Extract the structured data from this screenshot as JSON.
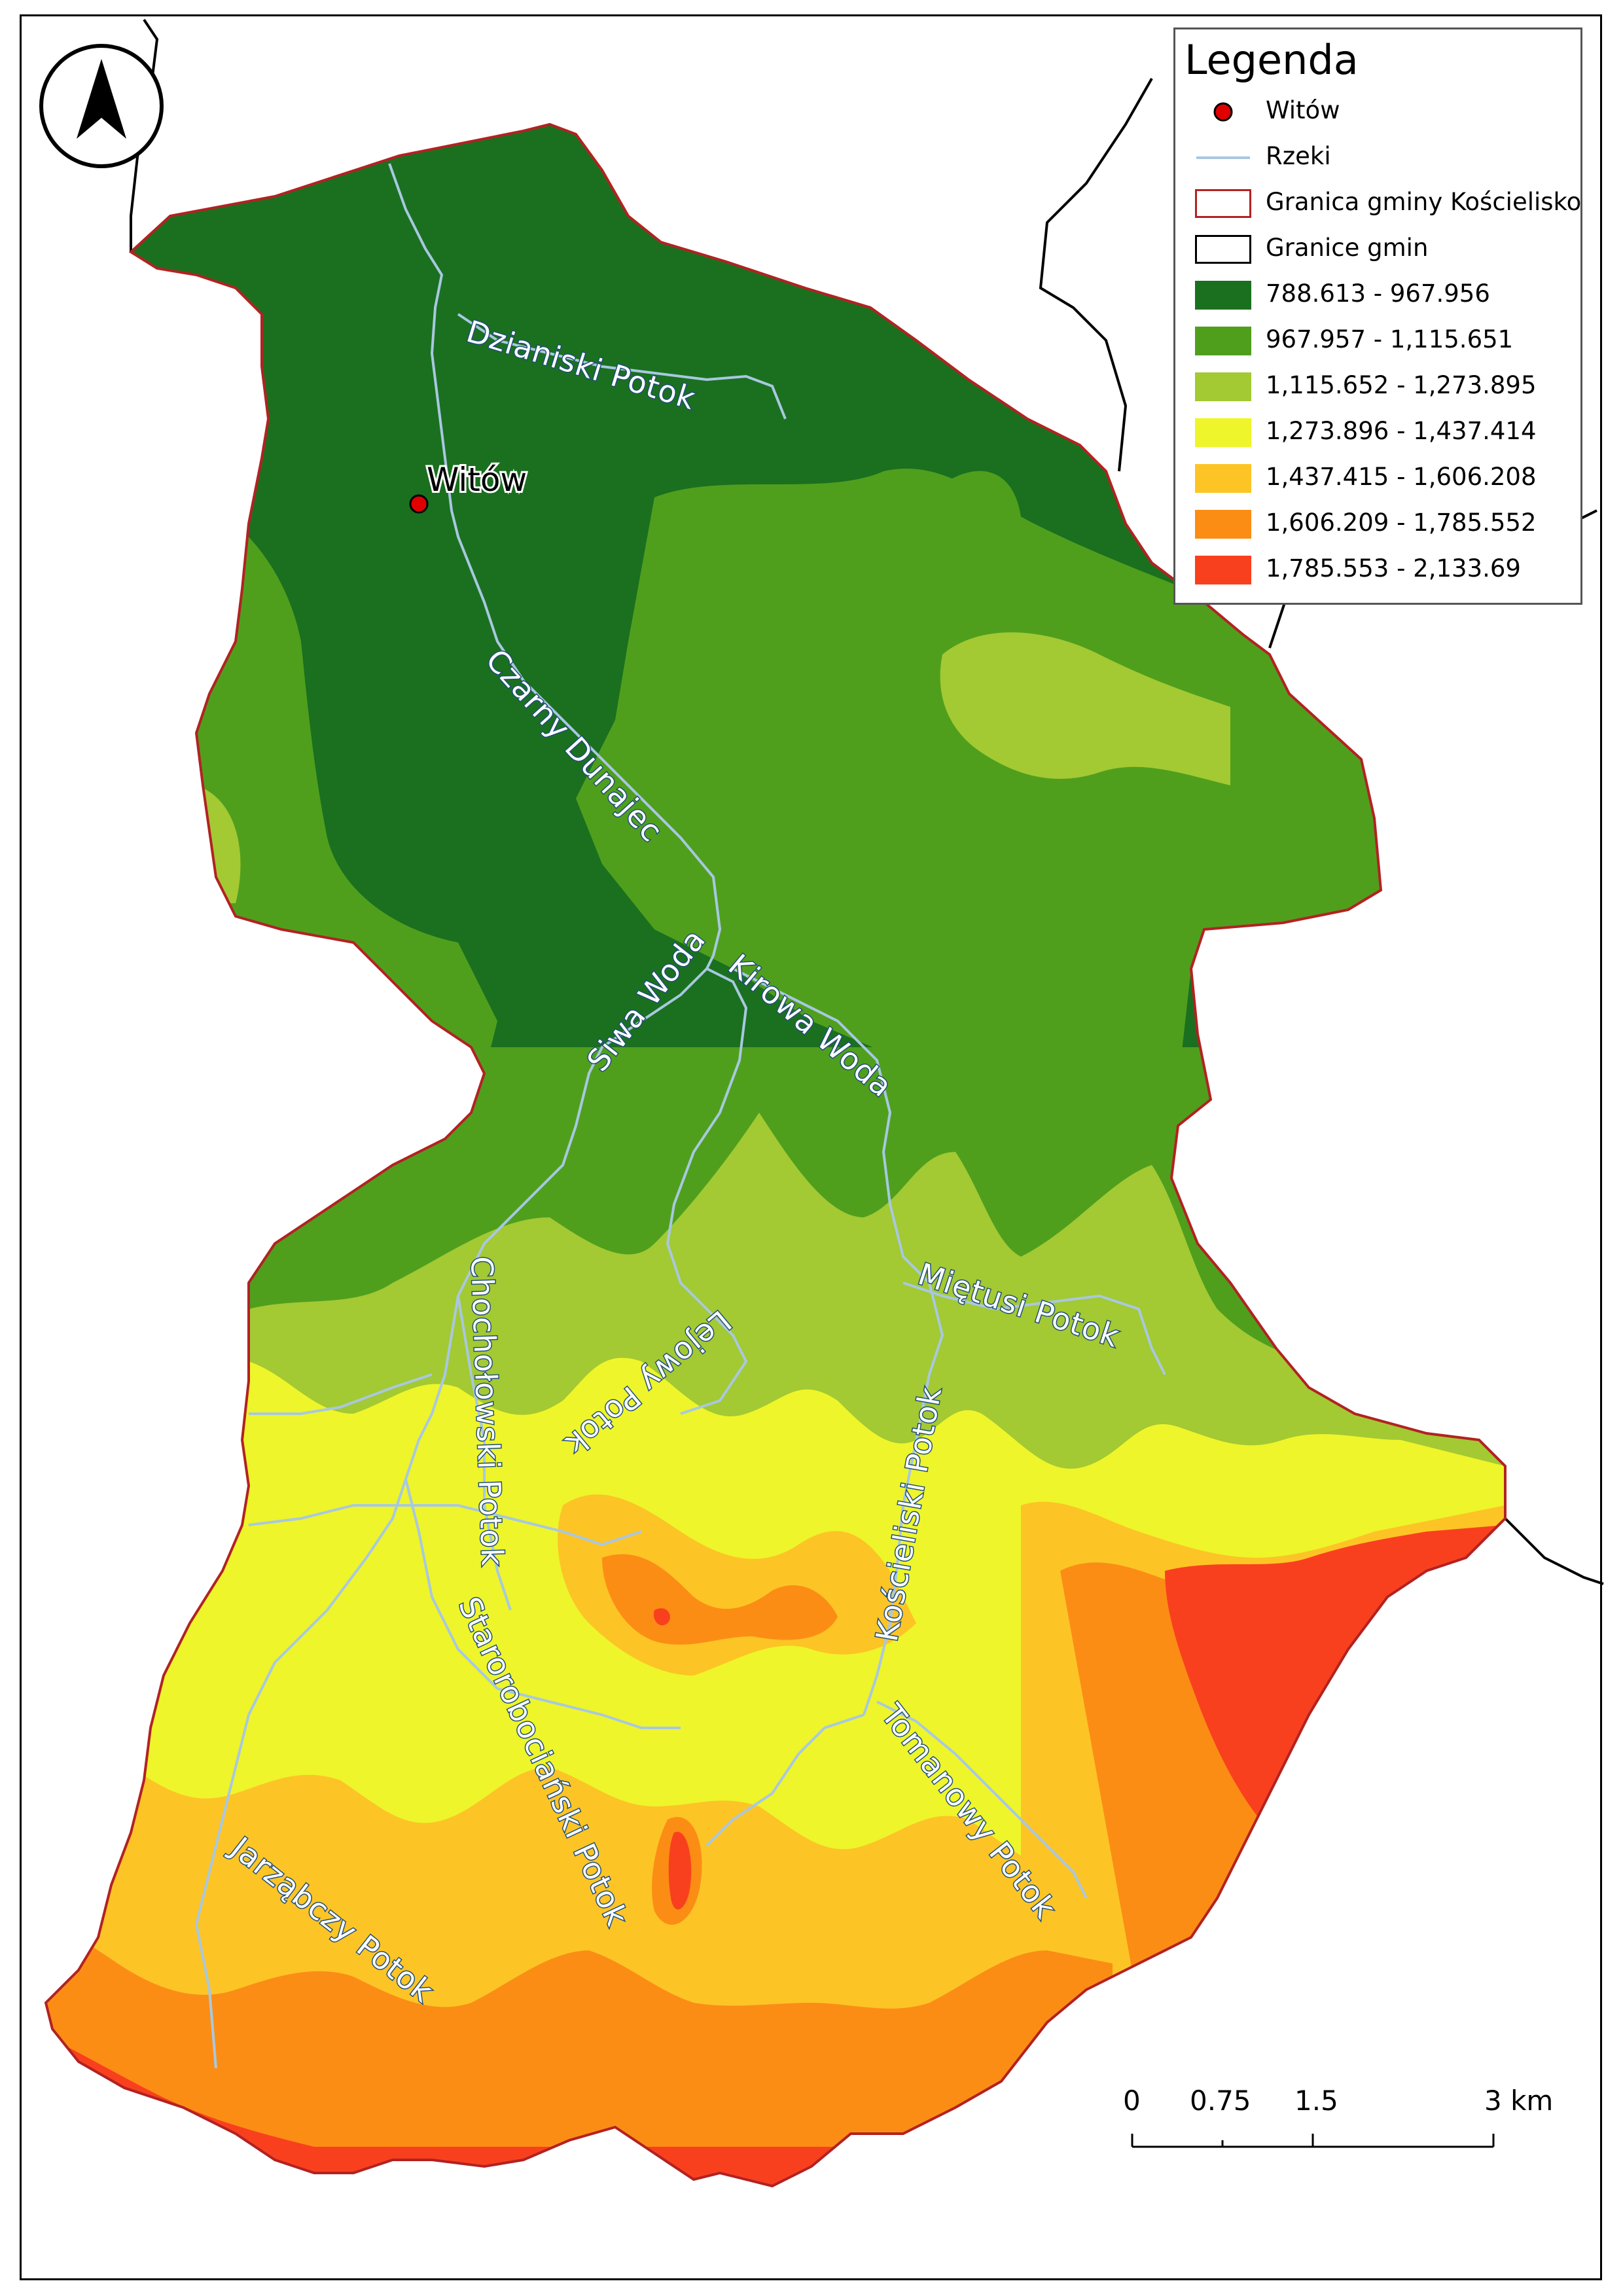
{
  "legend": {
    "title": "Legenda",
    "items": [
      {
        "label": "Witów",
        "symbol": "point",
        "color": "#e00000"
      },
      {
        "label": "Rzeki",
        "symbol": "line",
        "color": "#a8c8e0"
      },
      {
        "label": "Granica gminy Kościelisko",
        "symbol": "outline",
        "color": "#b22222"
      },
      {
        "label": "Granice gmin",
        "symbol": "outline",
        "color": "#000000"
      },
      {
        "label": "788.613 - 967.956",
        "symbol": "fill",
        "color": "#1a701f"
      },
      {
        "label": "967.957 - 1,115.651",
        "symbol": "fill",
        "color": "#4f9f1d"
      },
      {
        "label": "1,115.652 - 1,273.895",
        "symbol": "fill",
        "color": "#a3c933"
      },
      {
        "label": "1,273.896 - 1,437.414",
        "symbol": "fill",
        "color": "#eef52a"
      },
      {
        "label": "1,437.415 - 1,606.208",
        "symbol": "fill",
        "color": "#fdc426"
      },
      {
        "label": "1,606.209 - 1,785.552",
        "symbol": "fill",
        "color": "#fb8d15"
      },
      {
        "label": "1,785.553 - 2,133.69",
        "symbol": "fill",
        "color": "#f9401e"
      }
    ]
  },
  "town": {
    "name": "Witów",
    "color": "#e00000"
  },
  "rivers": [
    {
      "name": "Dzianiski Potok"
    },
    {
      "name": "Czarny Dunajec"
    },
    {
      "name": "Siwa Woda"
    },
    {
      "name": "Kirowa Woda"
    },
    {
      "name": "Miętusi Potok"
    },
    {
      "name": "Lejowy Potok"
    },
    {
      "name": "Chochołowski Potok"
    },
    {
      "name": "Kościeliski Potok"
    },
    {
      "name": "Starorobociański Potok"
    },
    {
      "name": "Tomanowy Potok"
    },
    {
      "name": "Jarząbczy Potok"
    }
  ],
  "scale": {
    "ticks": [
      "0",
      "0.75",
      "1.5",
      "3 km"
    ]
  },
  "north_arrow": {
    "icon": "north-arrow-icon"
  }
}
